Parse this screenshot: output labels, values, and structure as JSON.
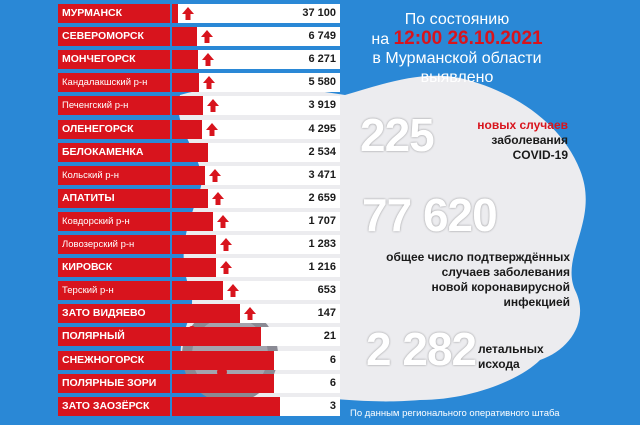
{
  "header": {
    "line1": "По состоянию",
    "prefix": "на",
    "datetime": "12:00 26.10.2021",
    "line3": "в Мурманской области",
    "line4": "выявлено"
  },
  "new_cases": {
    "value": "225",
    "label_red": "новых случаев",
    "label_line2": "заболевания",
    "label_line3": "COVID-19"
  },
  "total": {
    "value": "77 620",
    "label": [
      "общее число подтверждённых",
      "случаев заболевания",
      "новой коронавирусной",
      "инфекцией"
    ]
  },
  "deaths": {
    "value": "2 282",
    "label": [
      "летальных",
      "исхода"
    ]
  },
  "footer": "По данным регионального оперативного штаба",
  "colors": {
    "red": "#d8141d",
    "blue": "#2a88d6",
    "map": "#ececef"
  },
  "rows": [
    {
      "name": "МУРМАНСК",
      "value": "37 100",
      "n": 37100,
      "arrow": true,
      "small": false
    },
    {
      "name": "СЕВЕРОМОРСК",
      "value": "6 749",
      "n": 6749,
      "arrow": true,
      "small": false
    },
    {
      "name": "МОНЧЕГОРСК",
      "value": "6 271",
      "n": 6271,
      "arrow": true,
      "small": false
    },
    {
      "name": "Кандалакшский р-н",
      "value": "5 580",
      "n": 5580,
      "arrow": true,
      "small": true
    },
    {
      "name": "Печенгский р-н",
      "value": "3 919",
      "n": 3919,
      "arrow": true,
      "small": true
    },
    {
      "name": "ОЛЕНЕГОРСК",
      "value": "4 295",
      "n": 4295,
      "arrow": true,
      "small": false
    },
    {
      "name": "БЕЛОКАМЕНКА",
      "value": "2 534",
      "n": 2534,
      "arrow": false,
      "small": false
    },
    {
      "name": "Кольский р-н",
      "value": "3 471",
      "n": 3471,
      "arrow": true,
      "small": true
    },
    {
      "name": "АПАТИТЫ",
      "value": "2 659",
      "n": 2659,
      "arrow": true,
      "small": false
    },
    {
      "name": "Ковдорский р-н",
      "value": "1 707",
      "n": 1707,
      "arrow": true,
      "small": true
    },
    {
      "name": "Ловозерский р-н",
      "value": "1 283",
      "n": 1283,
      "arrow": true,
      "small": true
    },
    {
      "name": "КИРОВСК",
      "value": "1 216",
      "n": 1216,
      "arrow": true,
      "small": false
    },
    {
      "name": "Терский р-н",
      "value": "653",
      "n": 653,
      "arrow": true,
      "small": true
    },
    {
      "name": "ЗАТО ВИДЯЕВО",
      "value": "147",
      "n": 147,
      "arrow": true,
      "small": false
    },
    {
      "name": "ПОЛЯРНЫЙ",
      "value": "21",
      "n": 21,
      "arrow": false,
      "small": false
    },
    {
      "name": "СНЕЖНОГОРСК",
      "value": "6",
      "n": 6,
      "arrow": false,
      "small": false
    },
    {
      "name": "ПОЛЯРНЫЕ ЗОРИ",
      "value": "6",
      "n": 6,
      "arrow": false,
      "small": false
    },
    {
      "name": "ЗАТО ЗАОЗЁРСК",
      "value": "3",
      "n": 3,
      "arrow": false,
      "small": false
    }
  ]
}
